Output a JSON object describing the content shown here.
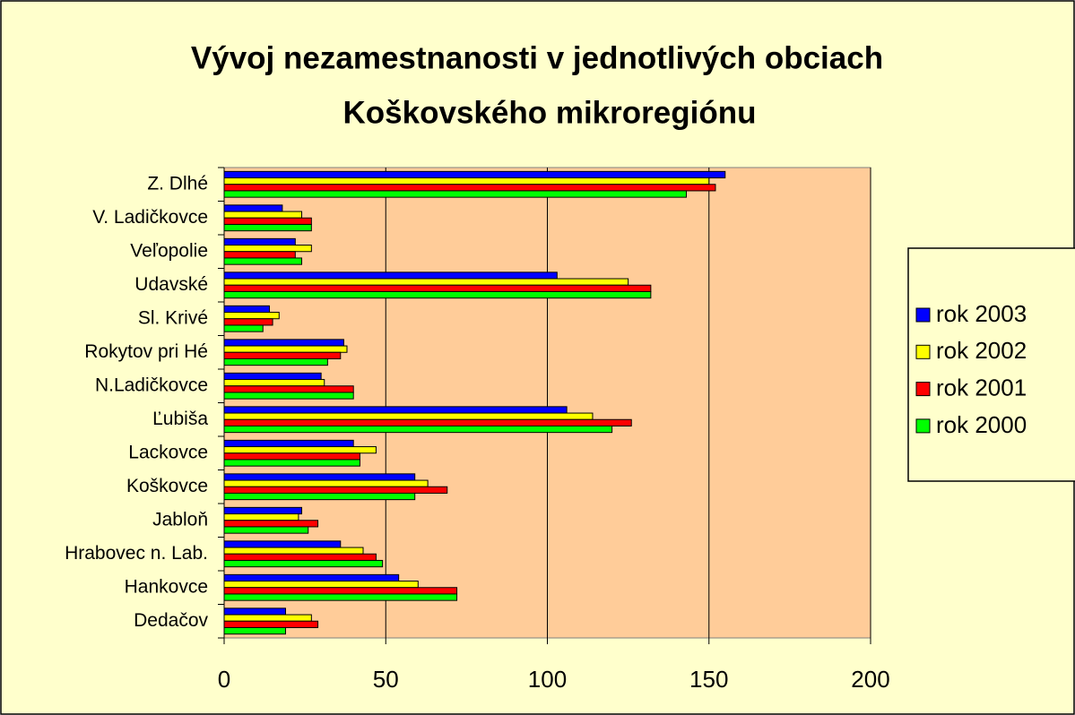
{
  "chart_data": {
    "type": "hbar",
    "title": [
      "Vývoj nezamestnanosti v jednotlivých obciach",
      "Koškovského mikroregiónu"
    ],
    "categories": [
      "Z. Dlhé",
      "V. Ladičkovce",
      "Veľopolie",
      "Udavské",
      "Sl. Krivé",
      "Rokytov pri Hé",
      "N.Ladičkovce",
      "Ľubiša",
      "Lackovce",
      "Koškovce",
      "Jabloň",
      "Hrabovec n. Lab.",
      "Hankovce",
      "Dedačov"
    ],
    "series": [
      {
        "name": "rok 2003",
        "color": "#0000ff",
        "values": [
          155,
          18,
          22,
          103,
          14,
          37,
          30,
          106,
          40,
          59,
          24,
          36,
          54,
          19
        ]
      },
      {
        "name": "rok 2002",
        "color": "#ffff00",
        "values": [
          150,
          24,
          27,
          125,
          17,
          38,
          31,
          114,
          47,
          63,
          23,
          43,
          60,
          27
        ]
      },
      {
        "name": "rok 2001",
        "color": "#ff0000",
        "values": [
          152,
          27,
          22,
          132,
          15,
          36,
          40,
          126,
          42,
          69,
          29,
          47,
          72,
          29
        ]
      },
      {
        "name": "rok 2000",
        "color": "#00ff00",
        "values": [
          143,
          27,
          24,
          132,
          12,
          32,
          40,
          120,
          42,
          59,
          26,
          49,
          72,
          19
        ]
      }
    ],
    "xlim": [
      0,
      200
    ],
    "xticks": [
      0,
      50,
      100,
      150,
      200
    ],
    "grid": true,
    "legend": "right",
    "background": "#ffffcc",
    "plot_background": "#ffcc99"
  }
}
